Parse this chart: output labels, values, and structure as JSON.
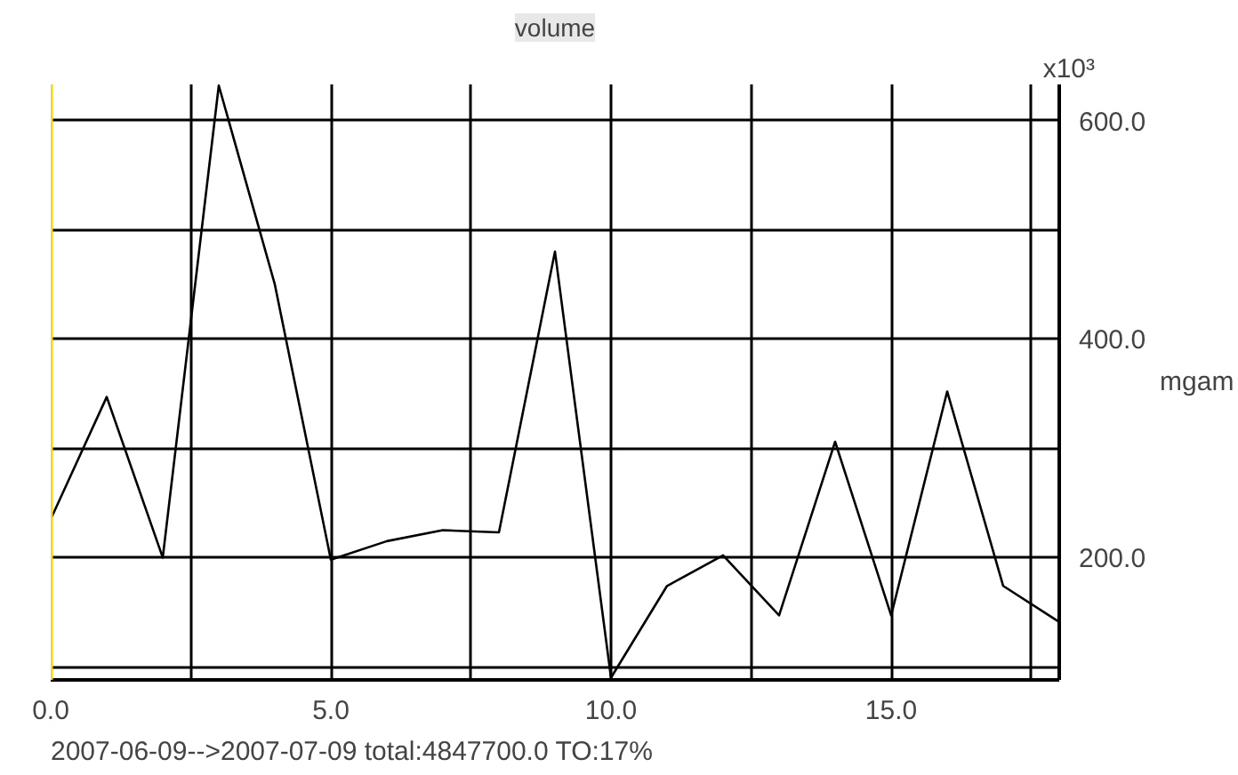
{
  "chart_data": {
    "type": "line",
    "title": "volume",
    "ylabel": "mgam",
    "annotations": [
      "x10³",
      "2007-06-09-->2007-07-09 total:4847700.0 TO:17%"
    ],
    "x": [
      0,
      1,
      2,
      3,
      4,
      5,
      6,
      7,
      8,
      9,
      10,
      11,
      12,
      13,
      14,
      15,
      16,
      17,
      18
    ],
    "series": [
      {
        "color": "#000000",
        "values": [
          235,
          347,
          200,
          632,
          450,
          198,
          215,
          225,
          223,
          480,
          90,
          174,
          202,
          147,
          306,
          147,
          352,
          174,
          141
        ]
      }
    ],
    "xlim": [
      0,
      18
    ],
    "ylim": [
      88,
      633
    ],
    "xticks": [
      {
        "value": 0,
        "label": "0.0"
      },
      {
        "value": 2.5,
        "label": null
      },
      {
        "value": 5,
        "label": "5.0"
      },
      {
        "value": 7.5,
        "label": null
      },
      {
        "value": 10,
        "label": "10.0"
      },
      {
        "value": 12.5,
        "label": null
      },
      {
        "value": 15,
        "label": "15.0"
      },
      {
        "value": 17.5,
        "label": null
      }
    ],
    "yticks": [
      {
        "value": 100,
        "label": null
      },
      {
        "value": 200,
        "label": "200.0"
      },
      {
        "value": 300,
        "label": null
      },
      {
        "value": 400,
        "label": "400.0"
      },
      {
        "value": 500,
        "label": null
      },
      {
        "value": 600,
        "label": "600.0"
      }
    ],
    "ref_lines": [
      {
        "axis": "x",
        "value": 0,
        "color": "#ffd700"
      }
    ],
    "grid": true,
    "marker": "none",
    "line_style": "solid"
  }
}
